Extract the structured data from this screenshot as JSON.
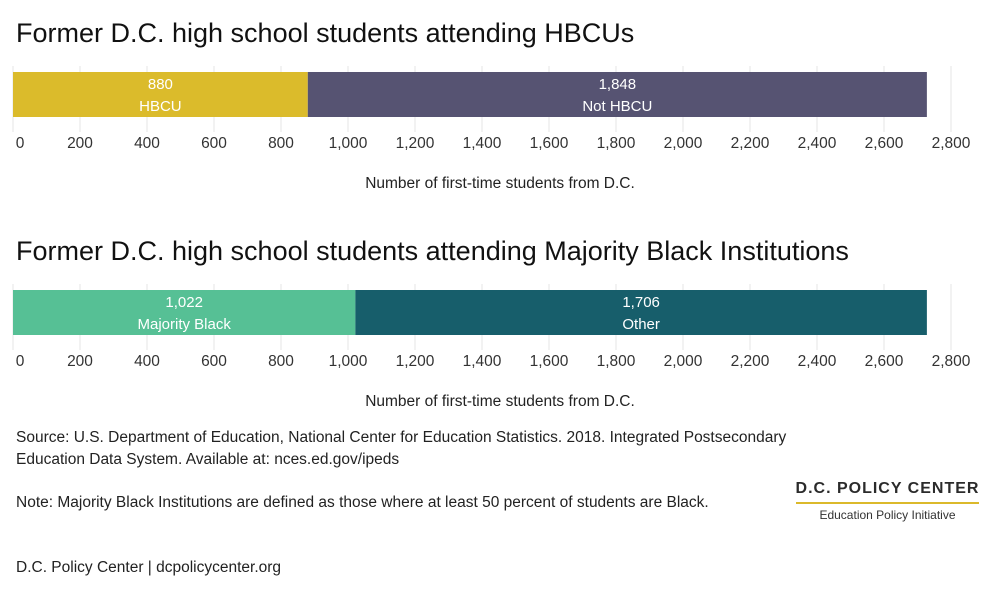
{
  "chart_data": [
    {
      "type": "bar",
      "orientation": "horizontal-stacked",
      "title": "Former D.C. high school students attending HBCUs",
      "xlabel": "Number of first-time students from D.C.",
      "xlim": [
        0,
        2800
      ],
      "ticks": [
        "0",
        "200",
        "400",
        "600",
        "800",
        "1,000",
        "1,200",
        "1,400",
        "1,600",
        "1,800",
        "2,000",
        "2,200",
        "2,400",
        "2,600",
        "2,800"
      ],
      "grid": true,
      "series": [
        {
          "name": "HBCU",
          "value": 880,
          "label": "880",
          "color": "#dbbb2b"
        },
        {
          "name": "Not HBCU",
          "value": 1848,
          "label": "1,848",
          "color": "#565372"
        }
      ]
    },
    {
      "type": "bar",
      "orientation": "horizontal-stacked",
      "title": "Former D.C. high school students attending Majority Black Institutions",
      "xlabel": "Number of first-time students from D.C.",
      "xlim": [
        0,
        2800
      ],
      "ticks": [
        "0",
        "200",
        "400",
        "600",
        "800",
        "1,000",
        "1,200",
        "1,400",
        "1,600",
        "1,800",
        "2,000",
        "2,200",
        "2,400",
        "2,600",
        "2,800"
      ],
      "grid": true,
      "series": [
        {
          "name": "Majority Black",
          "value": 1022,
          "label": "1,022",
          "color": "#56c095"
        },
        {
          "name": "Other",
          "value": 1706,
          "label": "1,706",
          "color": "#175e6b"
        }
      ]
    }
  ],
  "footer": {
    "source": "Source: U.S. Department of Education, National Center for Education Statistics. 2018. Integrated Postsecondary Education Data System. Available at: nces.ed.gov/ipeds",
    "note": "Note: Majority Black Institutions are defined as those where at least 50 percent of students are Black.",
    "credit": "D.C. Policy Center | dcpolicycenter.org"
  },
  "logo": {
    "name": "D.C. POLICY CENTER",
    "subtitle": "Education Policy Initiative",
    "accent": "#dbb92b"
  }
}
